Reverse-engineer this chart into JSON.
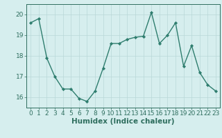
{
  "x": [
    0,
    1,
    2,
    3,
    4,
    5,
    6,
    7,
    8,
    9,
    10,
    11,
    12,
    13,
    14,
    15,
    16,
    17,
    18,
    19,
    20,
    21,
    22,
    23
  ],
  "y": [
    19.6,
    19.8,
    17.9,
    17.0,
    16.4,
    16.4,
    15.95,
    15.8,
    16.3,
    17.4,
    18.6,
    18.6,
    18.8,
    18.9,
    18.95,
    20.1,
    18.6,
    19.0,
    19.6,
    17.5,
    18.5,
    17.2,
    16.6,
    16.3
  ],
  "line_color": "#2e7d6e",
  "marker": "D",
  "marker_size": 2.2,
  "line_width": 1.0,
  "bg_color": "#d6eeee",
  "grid_color": "#b8d8d8",
  "xlabel": "Humidex (Indice chaleur)",
  "ylim": [
    15.5,
    20.5
  ],
  "xlim": [
    -0.5,
    23.5
  ],
  "yticks": [
    16,
    17,
    18,
    19,
    20
  ],
  "xticks": [
    0,
    1,
    2,
    3,
    4,
    5,
    6,
    7,
    8,
    9,
    10,
    11,
    12,
    13,
    14,
    15,
    16,
    17,
    18,
    19,
    20,
    21,
    22,
    23
  ],
  "xlabel_fontsize": 7.5,
  "tick_fontsize": 6.5,
  "tick_color": "#2e6e5e",
  "axis_color": "#2e6e5e"
}
